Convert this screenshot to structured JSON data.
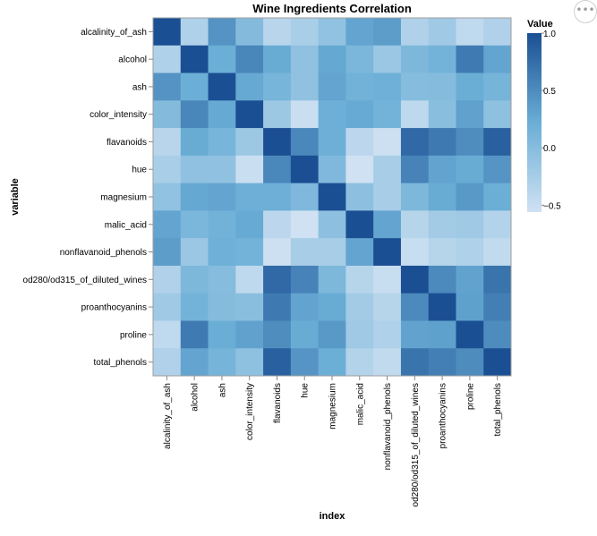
{
  "actions_menu": {
    "icon": "ellipsis-icon",
    "glyph": "•••"
  },
  "chart_data": {
    "type": "heatmap",
    "title": "Wine Ingredients Correlation",
    "xlabel": "index",
    "ylabel": "variable",
    "x_categories": [
      "alcalinity_of_ash",
      "alcohol",
      "ash",
      "color_intensity",
      "flavanoids",
      "hue",
      "magnesium",
      "malic_acid",
      "nonflavanoid_phenols",
      "od280/od315_of_diluted_wines",
      "proanthocyanins",
      "proline",
      "total_phenols"
    ],
    "y_categories": [
      "alcalinity_of_ash",
      "alcohol",
      "ash",
      "color_intensity",
      "flavanoids",
      "hue",
      "magnesium",
      "malic_acid",
      "nonflavanoid_phenols",
      "od280/od315_of_diluted_wines",
      "proanthocyanins",
      "proline",
      "total_phenols"
    ],
    "values": [
      [
        1.0,
        -0.31,
        0.44,
        0.02,
        -0.38,
        -0.27,
        -0.08,
        0.29,
        0.36,
        -0.32,
        -0.2,
        -0.44,
        -0.32
      ],
      [
        -0.31,
        1.0,
        0.21,
        0.55,
        0.24,
        -0.07,
        0.27,
        0.09,
        -0.16,
        0.07,
        0.14,
        0.64,
        0.29
      ],
      [
        0.44,
        0.21,
        1.0,
        0.26,
        0.12,
        -0.07,
        0.29,
        0.16,
        0.19,
        0.0,
        0.01,
        0.22,
        0.13
      ],
      [
        0.02,
        0.55,
        0.26,
        1.0,
        -0.17,
        -0.52,
        0.2,
        0.25,
        0.14,
        -0.43,
        -0.03,
        0.32,
        -0.06
      ],
      [
        -0.38,
        0.24,
        0.12,
        -0.17,
        1.0,
        0.54,
        0.2,
        -0.41,
        -0.54,
        0.79,
        0.65,
        0.49,
        0.86
      ],
      [
        -0.27,
        -0.07,
        -0.07,
        -0.52,
        0.54,
        1.0,
        0.06,
        -0.56,
        -0.26,
        0.57,
        0.3,
        0.24,
        0.43
      ],
      [
        -0.08,
        0.27,
        0.29,
        0.2,
        0.2,
        0.06,
        1.0,
        -0.05,
        -0.26,
        0.07,
        0.24,
        0.39,
        0.21
      ],
      [
        0.29,
        0.09,
        0.16,
        0.25,
        -0.41,
        -0.56,
        -0.05,
        1.0,
        0.29,
        -0.37,
        -0.22,
        -0.19,
        -0.34
      ],
      [
        0.36,
        -0.16,
        0.19,
        0.14,
        -0.54,
        -0.26,
        -0.26,
        0.29,
        1.0,
        -0.5,
        -0.37,
        -0.31,
        -0.45
      ],
      [
        -0.32,
        0.07,
        0.0,
        -0.43,
        0.79,
        0.57,
        0.07,
        -0.37,
        -0.5,
        1.0,
        0.52,
        0.31,
        0.7
      ],
      [
        -0.2,
        0.14,
        0.01,
        -0.03,
        0.65,
        0.3,
        0.24,
        -0.22,
        -0.37,
        0.52,
        1.0,
        0.33,
        0.61
      ],
      [
        -0.44,
        0.64,
        0.22,
        0.32,
        0.49,
        0.24,
        0.39,
        -0.19,
        -0.31,
        0.31,
        0.33,
        1.0,
        0.5
      ],
      [
        -0.32,
        0.29,
        0.13,
        -0.06,
        0.86,
        0.43,
        0.21,
        -0.34,
        -0.45,
        0.7,
        0.61,
        0.5,
        1.0
      ]
    ],
    "legend": {
      "title": "Value",
      "ticks": [
        1.0,
        0.5,
        0.0,
        -0.5
      ],
      "tick_labels": [
        "1.0",
        "0.5",
        "0.0",
        "−0.5"
      ],
      "domain": [
        -0.56,
        1.0
      ],
      "placement": "right"
    },
    "colors": {
      "low": "#cfe1f2",
      "mid": "#6aaed6",
      "high": "#1b4f93"
    },
    "grid": false
  }
}
